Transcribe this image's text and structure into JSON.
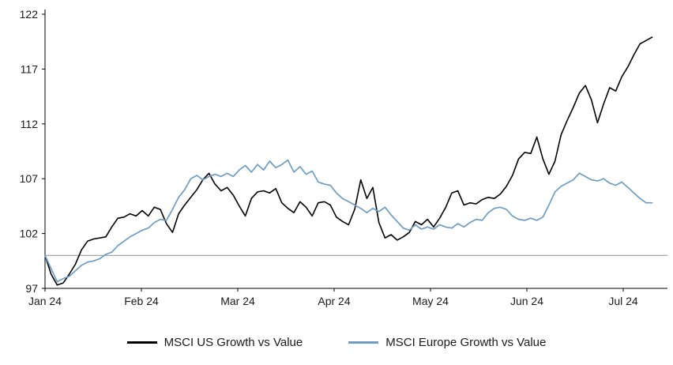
{
  "chart_data": {
    "type": "line",
    "title": "",
    "x_axis": {
      "tick_labels": [
        "Jan 24",
        "Feb 24",
        "Mar 24",
        "Apr 24",
        "May 24",
        "Jun 24",
        "Jul 24"
      ],
      "tick_positions_months": [
        0,
        1,
        2,
        3,
        4,
        5,
        6
      ],
      "range_months": [
        0,
        6.3
      ],
      "note": "x unit = months since Jan 2024; series points evenly spaced over range"
    },
    "y_axis": {
      "ticks": [
        97,
        102,
        107,
        112,
        117,
        122
      ],
      "ylim": [
        97,
        122
      ]
    },
    "baseline": {
      "value": 100,
      "color": "#a6a6a6"
    },
    "grid": false,
    "legend_position": "bottom-center",
    "axis_color": "#000000",
    "tick_label_color": "#1a1a1a",
    "series": [
      {
        "name": "MSCI US Growth vs Value",
        "color": "#000000",
        "values": [
          100.0,
          98.3,
          97.3,
          97.5,
          98.3,
          99.2,
          100.5,
          101.3,
          101.5,
          101.6,
          101.7,
          102.6,
          103.4,
          103.5,
          103.8,
          103.6,
          104.1,
          103.6,
          104.4,
          104.2,
          102.9,
          102.1,
          103.8,
          104.6,
          105.3,
          106.0,
          106.9,
          107.5,
          106.5,
          105.9,
          106.2,
          105.5,
          104.5,
          103.6,
          105.2,
          105.8,
          105.9,
          105.7,
          106.1,
          104.8,
          104.3,
          103.9,
          104.9,
          104.4,
          103.6,
          104.8,
          104.9,
          104.6,
          103.5,
          103.1,
          102.8,
          104.2,
          106.9,
          105.2,
          106.2,
          103.0,
          101.6,
          101.9,
          101.4,
          101.7,
          102.1,
          103.1,
          102.8,
          103.3,
          102.6,
          103.4,
          104.4,
          105.7,
          105.9,
          104.6,
          104.8,
          104.7,
          105.1,
          105.3,
          105.2,
          105.6,
          106.3,
          107.3,
          108.8,
          109.4,
          109.3,
          110.8,
          108.8,
          107.4,
          108.6,
          111.0,
          112.3,
          113.5,
          114.8,
          115.5,
          114.2,
          112.1,
          113.8,
          115.3,
          115.0,
          116.3,
          117.2,
          118.3,
          119.3,
          119.6,
          119.9
        ]
      },
      {
        "name": "MSCI Europe Growth vs Value",
        "color": "#6d9dc5",
        "values": [
          100.0,
          98.8,
          97.6,
          97.9,
          98.1,
          98.6,
          99.1,
          99.4,
          99.5,
          99.7,
          100.1,
          100.3,
          100.9,
          101.3,
          101.7,
          102.0,
          102.3,
          102.5,
          103.0,
          103.3,
          103.2,
          104.2,
          105.3,
          106.0,
          107.0,
          107.3,
          106.9,
          107.2,
          107.4,
          107.2,
          107.5,
          107.2,
          107.8,
          108.2,
          107.6,
          108.3,
          107.8,
          108.6,
          108.0,
          108.3,
          108.7,
          107.6,
          108.1,
          107.4,
          107.7,
          106.7,
          106.5,
          106.4,
          105.7,
          105.2,
          104.9,
          104.6,
          104.3,
          103.9,
          104.3,
          104.0,
          104.4,
          103.7,
          103.1,
          102.5,
          102.3,
          102.8,
          102.4,
          102.6,
          102.4,
          102.8,
          102.6,
          102.5,
          102.9,
          102.6,
          103.0,
          103.3,
          103.2,
          103.9,
          104.3,
          104.4,
          104.2,
          103.6,
          103.3,
          103.2,
          103.4,
          103.2,
          103.5,
          104.6,
          105.8,
          106.3,
          106.6,
          106.9,
          107.5,
          107.2,
          106.9,
          106.8,
          107.0,
          106.6,
          106.4,
          106.7,
          106.2,
          105.7,
          105.2,
          104.8,
          104.8
        ]
      }
    ]
  }
}
